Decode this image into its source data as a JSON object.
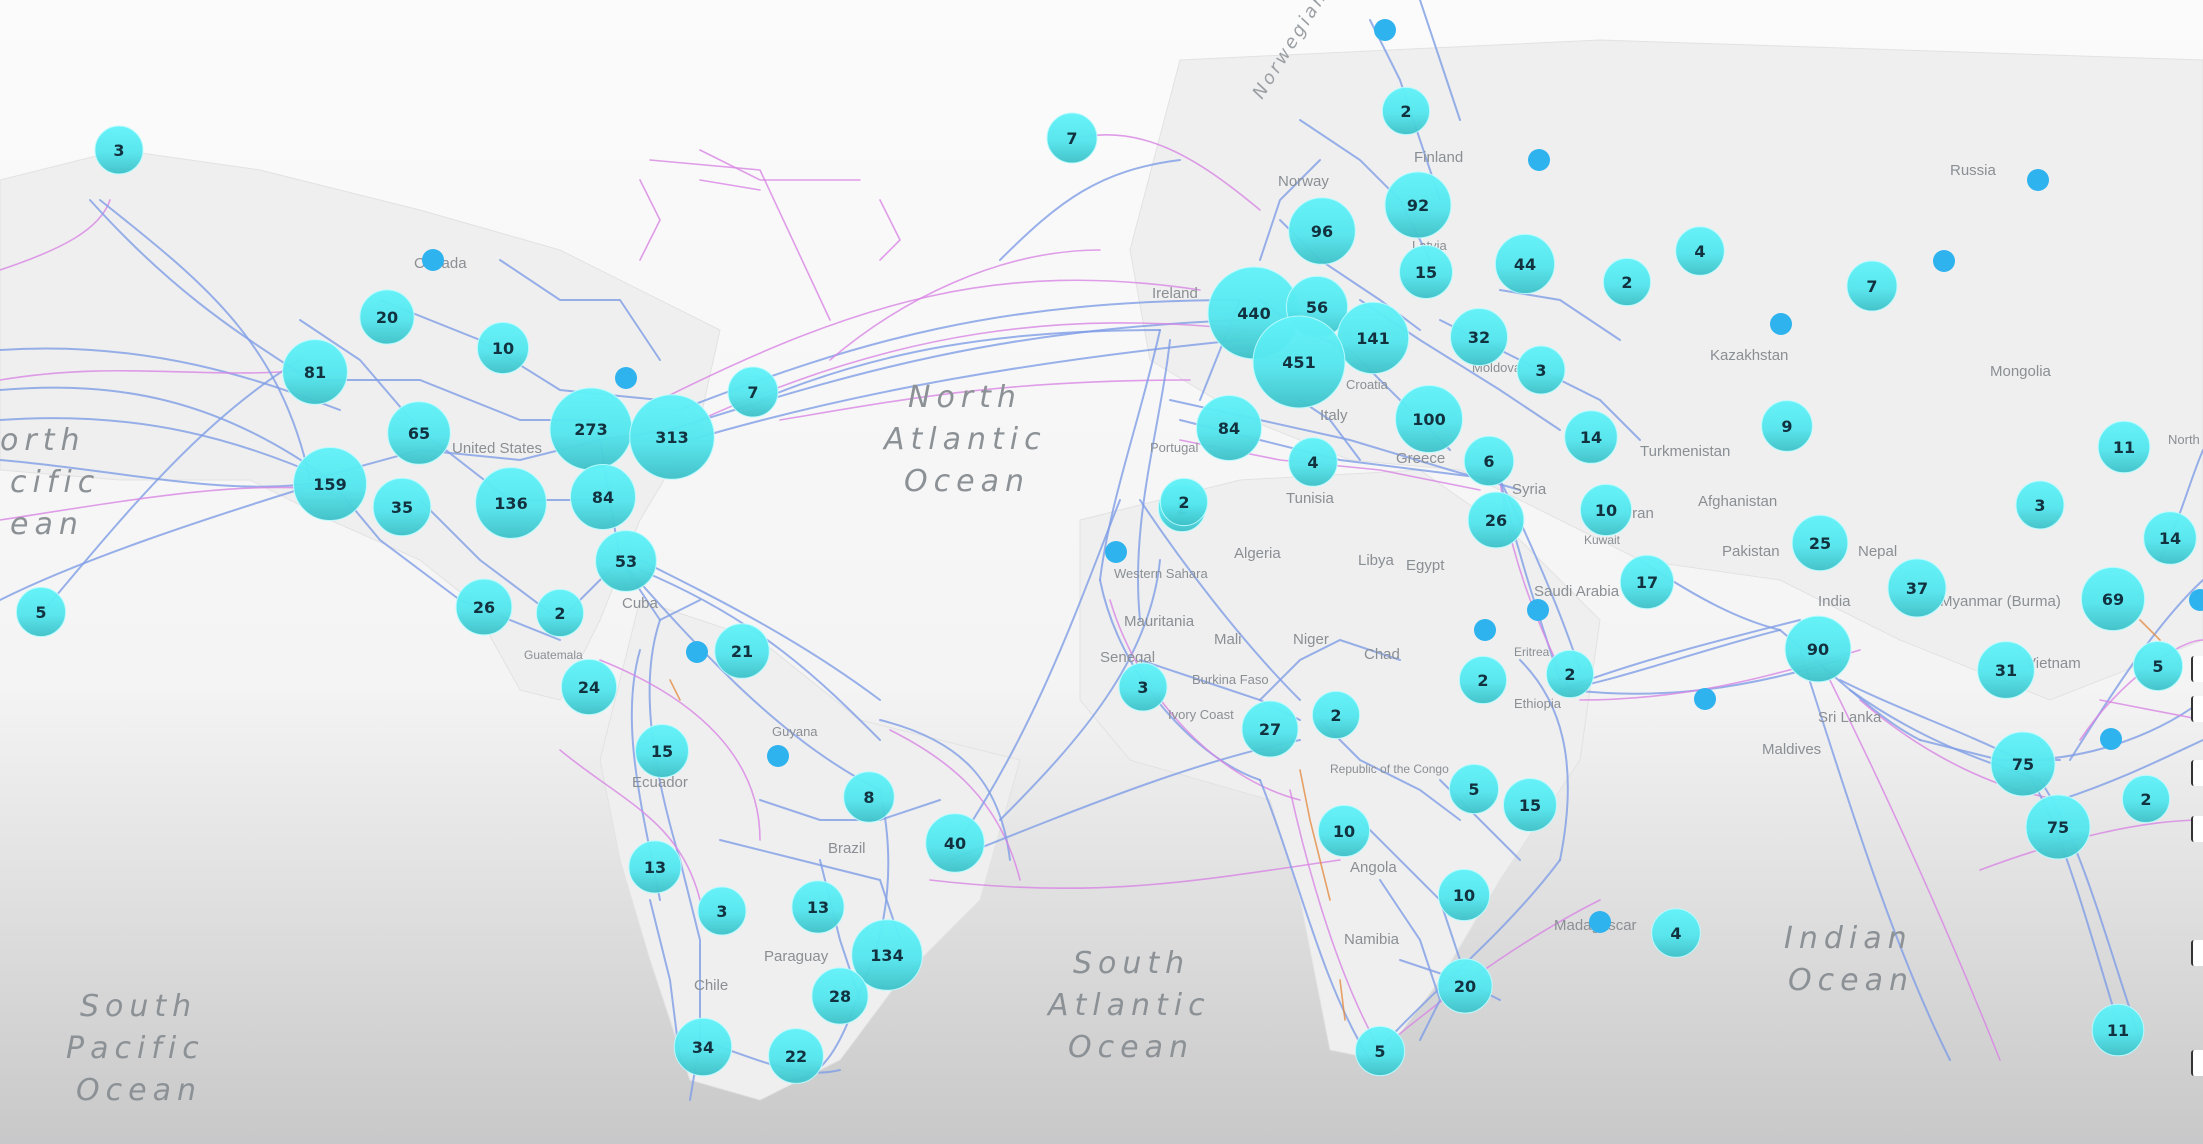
{
  "map": {
    "colors": {
      "background_top": "#fbfbfb",
      "background_bottom": "#c9c9ca",
      "land": "#f1f1f1",
      "cable_primary": "#7f9de6",
      "cable_secondary": "#d884e3",
      "cable_accent": "#e38b42",
      "cluster_fill": "#5ef0f7",
      "cluster_text": "#123240",
      "single_point": "#2eb3ef"
    },
    "oceans": [
      {
        "id": "north-pacific",
        "lines": [
          "orth",
          "cific",
          "ean"
        ]
      },
      {
        "id": "north-atlantic",
        "lines": [
          "North",
          "Atlantic",
          "Ocean"
        ]
      },
      {
        "id": "south-atlantic",
        "lines": [
          "South",
          "Atlantic",
          "Ocean"
        ]
      },
      {
        "id": "south-pacific",
        "lines": [
          "South",
          "Pacific",
          "Ocean"
        ]
      },
      {
        "id": "indian",
        "lines": [
          "Indian",
          "Ocean"
        ]
      }
    ],
    "seas": [
      {
        "id": "norwegian-sea",
        "text": "Norwegian"
      }
    ],
    "places": [
      "Canada",
      "United States",
      "Cuba",
      "Guatemala",
      "Ecuador",
      "Guyana",
      "Brazil",
      "Paraguay",
      "Chile",
      "Ireland",
      "Norway",
      "Finland",
      "Latvia",
      "Moldova",
      "Croatia",
      "Portugal",
      "Italy",
      "Greece",
      "Tunisia",
      "Algeria",
      "Libya",
      "Egypt",
      "Western Sahara",
      "Mauritania",
      "Mali",
      "Niger",
      "Chad",
      "Senegal",
      "Burkina Faso",
      "Ivory Coast",
      "Eritrea",
      "Ethiopia",
      "Republic of the Congo",
      "Angola",
      "Namibia",
      "Madagascar",
      "Syria",
      "Iran",
      "Kuwait",
      "Saudi Arabia",
      "Turkmenistan",
      "Afghanistan",
      "Pakistan",
      "India",
      "Nepal",
      "Myanmar (Burma)",
      "Sri Lanka",
      "Maldives",
      "Vietnam",
      "Kazakhstan",
      "Mongolia",
      "Russia",
      "North"
    ],
    "clusters": [
      3,
      7,
      2,
      92,
      96,
      15,
      44,
      4,
      2,
      7,
      20,
      10,
      81,
      273,
      313,
      7,
      440,
      56,
      141,
      32,
      3,
      9,
      65,
      159,
      35,
      136,
      84,
      84,
      451,
      100,
      14,
      11,
      4,
      6,
      3,
      14,
      53,
      2,
      26,
      10,
      26,
      2,
      17,
      25,
      37,
      69,
      21,
      24,
      3,
      27,
      2,
      2,
      2,
      90,
      31,
      5,
      15,
      8,
      5,
      15,
      75,
      40,
      10,
      2,
      13,
      3,
      13,
      10,
      4,
      75,
      134,
      28,
      20,
      34,
      22,
      5,
      11,
      5,
      2
    ],
    "single_points": 16
  },
  "controls": {
    "count": 6
  }
}
